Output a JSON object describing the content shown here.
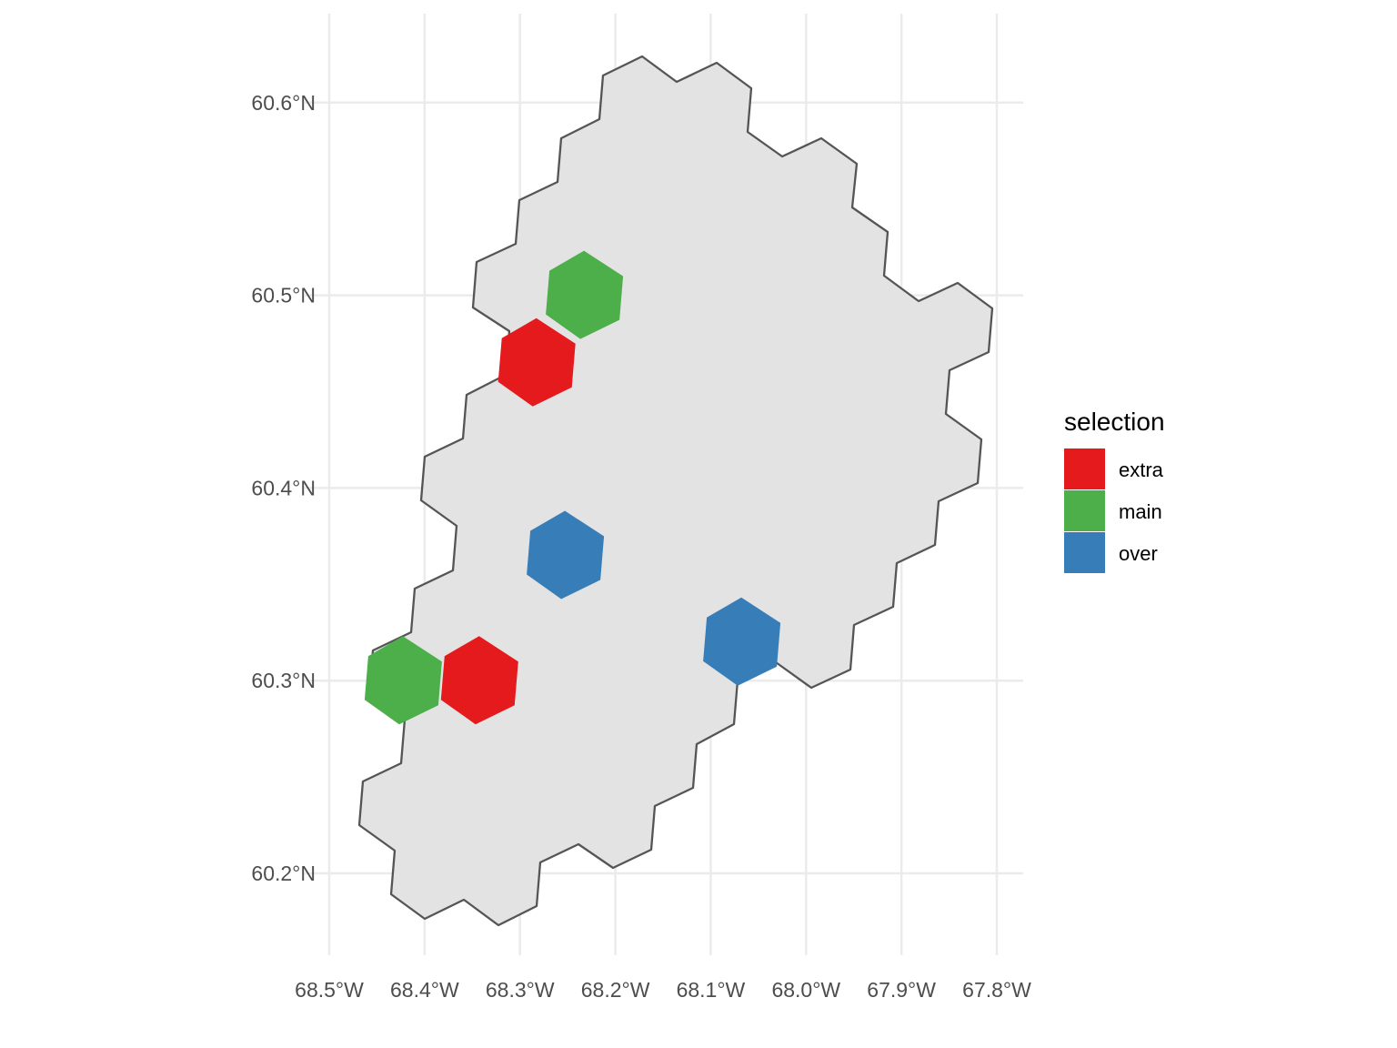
{
  "map": {
    "type": "hexgrid-map",
    "x_axis": {
      "ticks": [
        -68.5,
        -68.4,
        -68.3,
        -68.2,
        -68.1,
        -68.0,
        -67.9,
        -67.8
      ],
      "labels": [
        "68.5°W",
        "68.4°W",
        "68.3°W",
        "68.2°W",
        "68.1°W",
        "68.0°W",
        "67.9°W",
        "67.8°W"
      ]
    },
    "y_axis": {
      "ticks": [
        60.2,
        60.3,
        60.4,
        60.5,
        60.6
      ],
      "labels": [
        "60.2°N",
        "60.3°N",
        "60.4°N",
        "60.5°N",
        "60.6°N"
      ]
    },
    "grid": true,
    "region": {
      "fill": "#e3e3e3",
      "stroke": "#555555"
    },
    "cells": [
      {
        "category": "main",
        "lon": -68.23,
        "lat": 60.5
      },
      {
        "category": "extra",
        "lon": -68.28,
        "lat": 60.465
      },
      {
        "category": "over",
        "lon": -68.25,
        "lat": 60.365
      },
      {
        "category": "main",
        "lon": -68.42,
        "lat": 60.3
      },
      {
        "category": "extra",
        "lon": -68.34,
        "lat": 60.3
      },
      {
        "category": "over",
        "lon": -68.065,
        "lat": 60.32
      }
    ]
  },
  "legend": {
    "title": "selection",
    "position": "right",
    "items": [
      {
        "label": "extra",
        "color": "#e41a1c"
      },
      {
        "label": "main",
        "color": "#4daf4a"
      },
      {
        "label": "over",
        "color": "#377eb8"
      }
    ]
  }
}
